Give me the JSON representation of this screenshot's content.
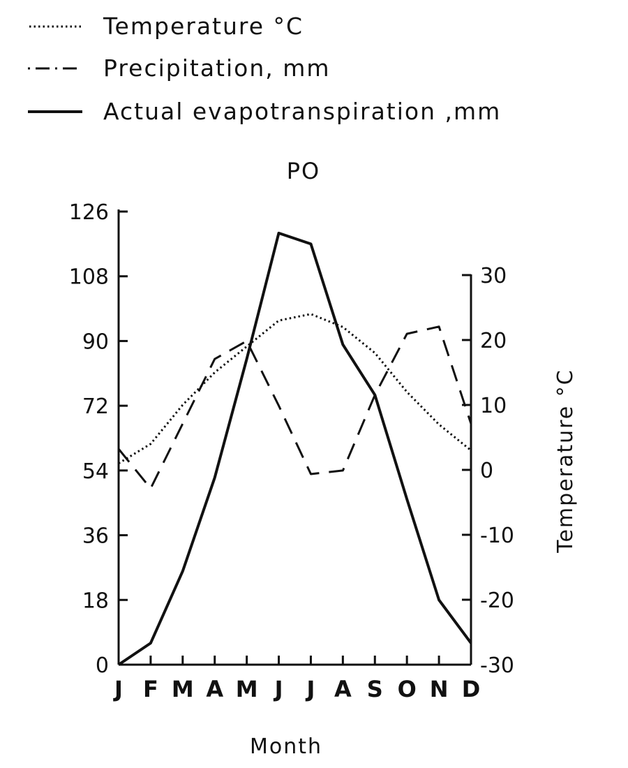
{
  "chart_data": {
    "type": "line",
    "title": "PO",
    "xlabel": "Month",
    "ylabel": "",
    "y2label": "Temperature °C",
    "categories": [
      "J",
      "F",
      "M",
      "A",
      "M",
      "J",
      "J",
      "A",
      "S",
      "O",
      "N",
      "D"
    ],
    "ylim": [
      0,
      126
    ],
    "yticks": [
      "0",
      "18",
      "36",
      "54",
      "72",
      "90",
      "108",
      "126"
    ],
    "y2lim": [
      -30,
      30
    ],
    "y2ticks": [
      "-30",
      "-20",
      "-10",
      "0",
      "10",
      "20",
      "30"
    ],
    "legend_position": "top-left",
    "grid": false,
    "series": [
      {
        "name": "Temperature °C",
        "axis": "right",
        "style": "dotted",
        "values": [
          1,
          4,
          10,
          15,
          19,
          23,
          24,
          22,
          18,
          12,
          7,
          3
        ]
      },
      {
        "name": "Precipitation, mm",
        "axis": "left",
        "style": "dashed",
        "values": [
          60,
          49,
          67,
          85,
          90,
          72,
          53,
          54,
          75,
          92,
          94,
          67
        ]
      },
      {
        "name": "Actual evapotranspiration ,mm",
        "axis": "left",
        "style": "solid",
        "values": [
          0,
          6,
          26,
          52,
          85,
          120,
          117,
          89,
          75,
          46,
          18,
          6
        ]
      }
    ]
  }
}
